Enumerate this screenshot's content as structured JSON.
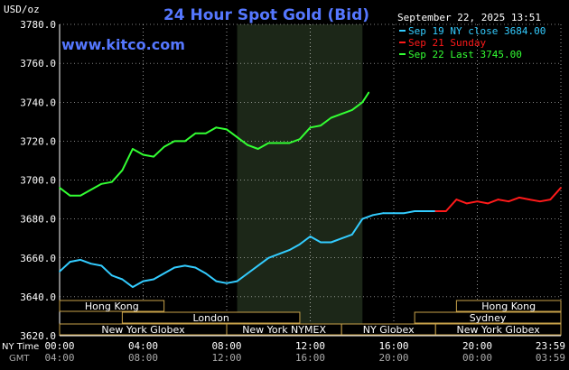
{
  "chart": {
    "title": "24 Hour Spot Gold (Bid)",
    "unit_label": "USD/oz",
    "site": "www.kitco.com",
    "timestamp": "September 22, 2025 13:51"
  },
  "legend": [
    {
      "label": "Sep 19 NY close 3684.00",
      "color": "#33ccff"
    },
    {
      "label": "Sep 21 Sunday",
      "color": "#ff1a1a"
    },
    {
      "label": "Sep 22 Last 3745.00",
      "color": "#33ff33"
    }
  ],
  "markets": [
    {
      "name": "Hong Kong",
      "row": 0,
      "start": "00:00",
      "end": "05:00"
    },
    {
      "name": "Hong Kong",
      "row": 0,
      "start": "19:00",
      "end": "24:00"
    },
    {
      "name": "London",
      "row": 1,
      "start": "03:00",
      "end": "11:30"
    },
    {
      "name": "Sydney",
      "row": 1,
      "start": "17:00",
      "end": "24:00"
    },
    {
      "name": "New York Globex",
      "row": 2,
      "start": "00:00",
      "end": "08:00"
    },
    {
      "name": "New York NYMEX",
      "row": 2,
      "start": "08:00",
      "end": "13:30"
    },
    {
      "name": "NY Globex",
      "row": 2,
      "start": "13:30",
      "end": "18:00"
    },
    {
      "name": "New York Globex",
      "row": 2,
      "start": "18:00",
      "end": "24:00"
    }
  ],
  "axis_labels": {
    "ny_time": "NY Time",
    "gmt": "GMT"
  },
  "chart_data": {
    "type": "line",
    "ylim": [
      3620,
      3780
    ],
    "yticks": [
      "3780.0",
      "3760.0",
      "3740.0",
      "3720.0",
      "3700.0",
      "3680.0",
      "3660.0",
      "3640.0",
      "3620.0"
    ],
    "ytick_values": [
      3780,
      3760,
      3740,
      3720,
      3700,
      3680,
      3660,
      3640,
      3620
    ],
    "xlim_hours": [
      0,
      24
    ],
    "xticks_ny": [
      "00:00",
      "04:00",
      "08:00",
      "12:00",
      "16:00",
      "20:00",
      "23:59"
    ],
    "xticks_gmt": [
      "04:00",
      "08:00",
      "12:00",
      "16:00",
      "20:00",
      "00:00",
      "03:59"
    ],
    "xtick_hours": [
      0,
      4,
      8,
      12,
      16,
      20,
      24
    ],
    "shaded_period_hours": [
      8.5,
      14.5
    ],
    "series": [
      {
        "name": "Sep 19 NY close 3684.00",
        "color": "#33ccff",
        "x": [
          0,
          0.5,
          1,
          1.5,
          2,
          2.5,
          3,
          3.5,
          4,
          4.5,
          5,
          5.5,
          6,
          6.5,
          7,
          7.5,
          8,
          8.5,
          9,
          9.5,
          10,
          10.5,
          11,
          11.5,
          12,
          12.5,
          13,
          13.5,
          14,
          14.5,
          15,
          15.5,
          16,
          16.5,
          17,
          17.5,
          18
        ],
        "y": [
          3653,
          3658,
          3659,
          3657,
          3656,
          3651,
          3649,
          3645,
          3648,
          3649,
          3652,
          3655,
          3656,
          3655,
          3652,
          3648,
          3647,
          3648,
          3652,
          3656,
          3660,
          3662,
          3664,
          3667,
          3671,
          3668,
          3668,
          3670,
          3672,
          3680,
          3682,
          3683,
          3683,
          3683,
          3684,
          3684,
          3684
        ]
      },
      {
        "name": "Sep 21 Sunday",
        "color": "#ff1a1a",
        "x": [
          18,
          18.5,
          19,
          19.5,
          20,
          20.5,
          21,
          21.5,
          22,
          22.5,
          23,
          23.5,
          24
        ],
        "y": [
          3684,
          3684,
          3690,
          3688,
          3689,
          3688,
          3690,
          3689,
          3691,
          3690,
          3689,
          3690,
          3696
        ]
      },
      {
        "name": "Sep 22 Last 3745.00",
        "color": "#33ff33",
        "x": [
          0,
          0.5,
          1,
          1.5,
          2,
          2.5,
          3,
          3.5,
          4,
          4.5,
          5,
          5.5,
          6,
          6.5,
          7,
          7.5,
          8,
          8.5,
          9,
          9.5,
          10,
          10.5,
          11,
          11.5,
          12,
          12.5,
          13,
          13.5,
          14,
          14.5,
          14.8
        ],
        "y": [
          3696,
          3692,
          3692,
          3695,
          3698,
          3699,
          3705,
          3716,
          3713,
          3712,
          3717,
          3720,
          3720,
          3724,
          3724,
          3727,
          3726,
          3722,
          3718,
          3716,
          3719,
          3719,
          3719,
          3721,
          3727,
          3728,
          3732,
          3734,
          3736,
          3740,
          3745
        ]
      }
    ]
  }
}
